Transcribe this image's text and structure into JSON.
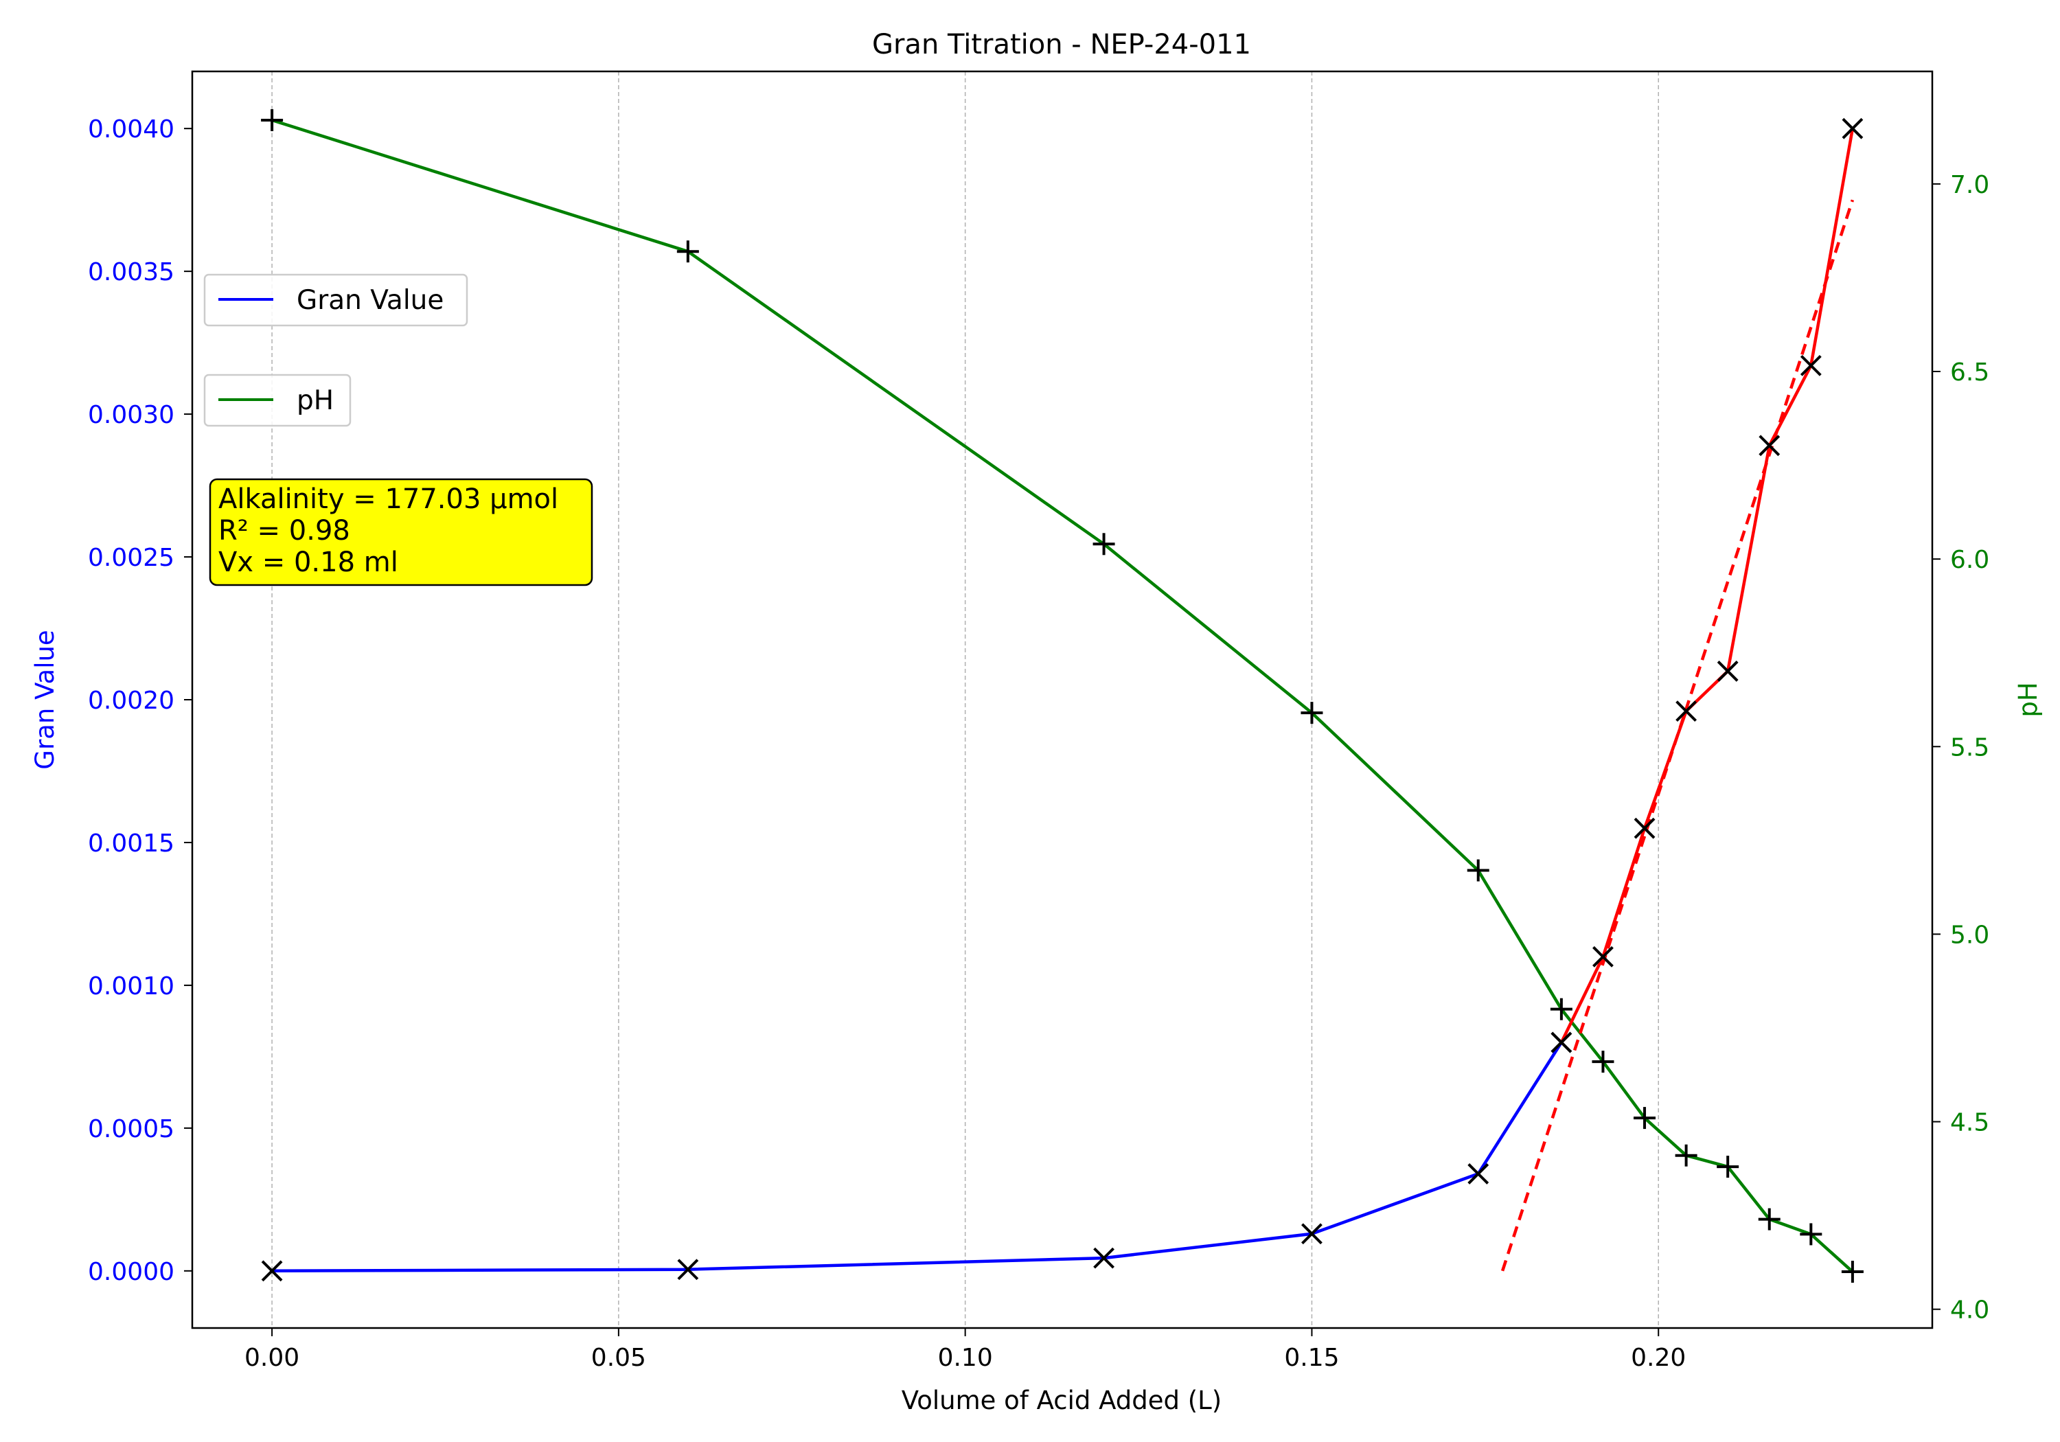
{
  "chart_data": {
    "type": "line",
    "title": "Gran Titration - NEP-24-011",
    "xlabel": "Volume of Acid Added (L)",
    "ylabel_left": "Gran Value",
    "ylabel_right": "pH",
    "xlim": [
      -0.0115,
      0.2395
    ],
    "ylim_left": [
      -0.0002,
      0.0042
    ],
    "ylim_right": [
      3.95,
      7.3
    ],
    "x_ticks": [
      0.0,
      0.05,
      0.1,
      0.15,
      0.2
    ],
    "x_tick_labels": [
      "0.00",
      "0.05",
      "0.10",
      "0.15",
      "0.20"
    ],
    "y_left_ticks": [
      0.0,
      0.0005,
      0.001,
      0.0015,
      0.002,
      0.0025,
      0.003,
      0.0035,
      0.004
    ],
    "y_left_tick_labels": [
      "0.0000",
      "0.0005",
      "0.0010",
      "0.0015",
      "0.0020",
      "0.0025",
      "0.0030",
      "0.0035",
      "0.0040"
    ],
    "y_right_ticks": [
      4.0,
      4.5,
      5.0,
      5.5,
      6.0,
      6.5,
      7.0
    ],
    "y_right_tick_labels": [
      "4.0",
      "4.5",
      "5.0",
      "5.5",
      "6.0",
      "6.5",
      "7.0"
    ],
    "grid": "vertical dashed",
    "colors": {
      "gran": "#0000ff",
      "ph": "#008000",
      "fit_points": "#ff0000",
      "fit_line": "#ff0000",
      "marker": "#000000",
      "annotation_bg": "#ffff00",
      "left_axis": "#0000ff",
      "right_axis": "#008000"
    },
    "series": [
      {
        "name": "Gran Value",
        "axis": "left",
        "x": [
          0.0,
          0.06,
          0.12,
          0.15,
          0.174,
          0.186
        ],
        "y": [
          0.0,
          5e-06,
          4.5e-05,
          0.00013,
          0.00034,
          0.0008
        ],
        "marker": "x"
      },
      {
        "name": "pH",
        "axis": "right",
        "x": [
          0.0,
          0.06,
          0.12,
          0.15,
          0.174,
          0.186,
          0.192,
          0.198,
          0.204,
          0.21,
          0.216,
          0.222,
          0.228
        ],
        "y": [
          7.17,
          6.82,
          6.04,
          5.59,
          5.17,
          4.8,
          4.66,
          4.51,
          4.41,
          4.38,
          4.24,
          4.2,
          4.1
        ],
        "marker": "+"
      },
      {
        "axis": "left",
        "x": [
          0.186,
          0.192,
          0.198,
          0.204,
          0.21,
          0.216,
          0.222,
          0.228
        ],
        "y": [
          0.0008,
          0.0011,
          0.00155,
          0.00196,
          0.0021,
          0.00289,
          0.00317,
          0.004
        ],
        "marker": "x"
      },
      {
        "axis": "left",
        "style": "dashed",
        "x": [
          0.1775,
          0.228
        ],
        "y": [
          0.0,
          0.00375
        ]
      }
    ],
    "legend": [
      {
        "label": "Gran Value",
        "color": "#0000ff",
        "placement": "upper-left"
      },
      {
        "label": "pH",
        "color": "#008000",
        "placement": "upper-left, below"
      }
    ],
    "annotation": [
      "Alkalinity = 177.03 µmol",
      "R² = 0.98",
      "Vx = 0.18 ml"
    ]
  }
}
